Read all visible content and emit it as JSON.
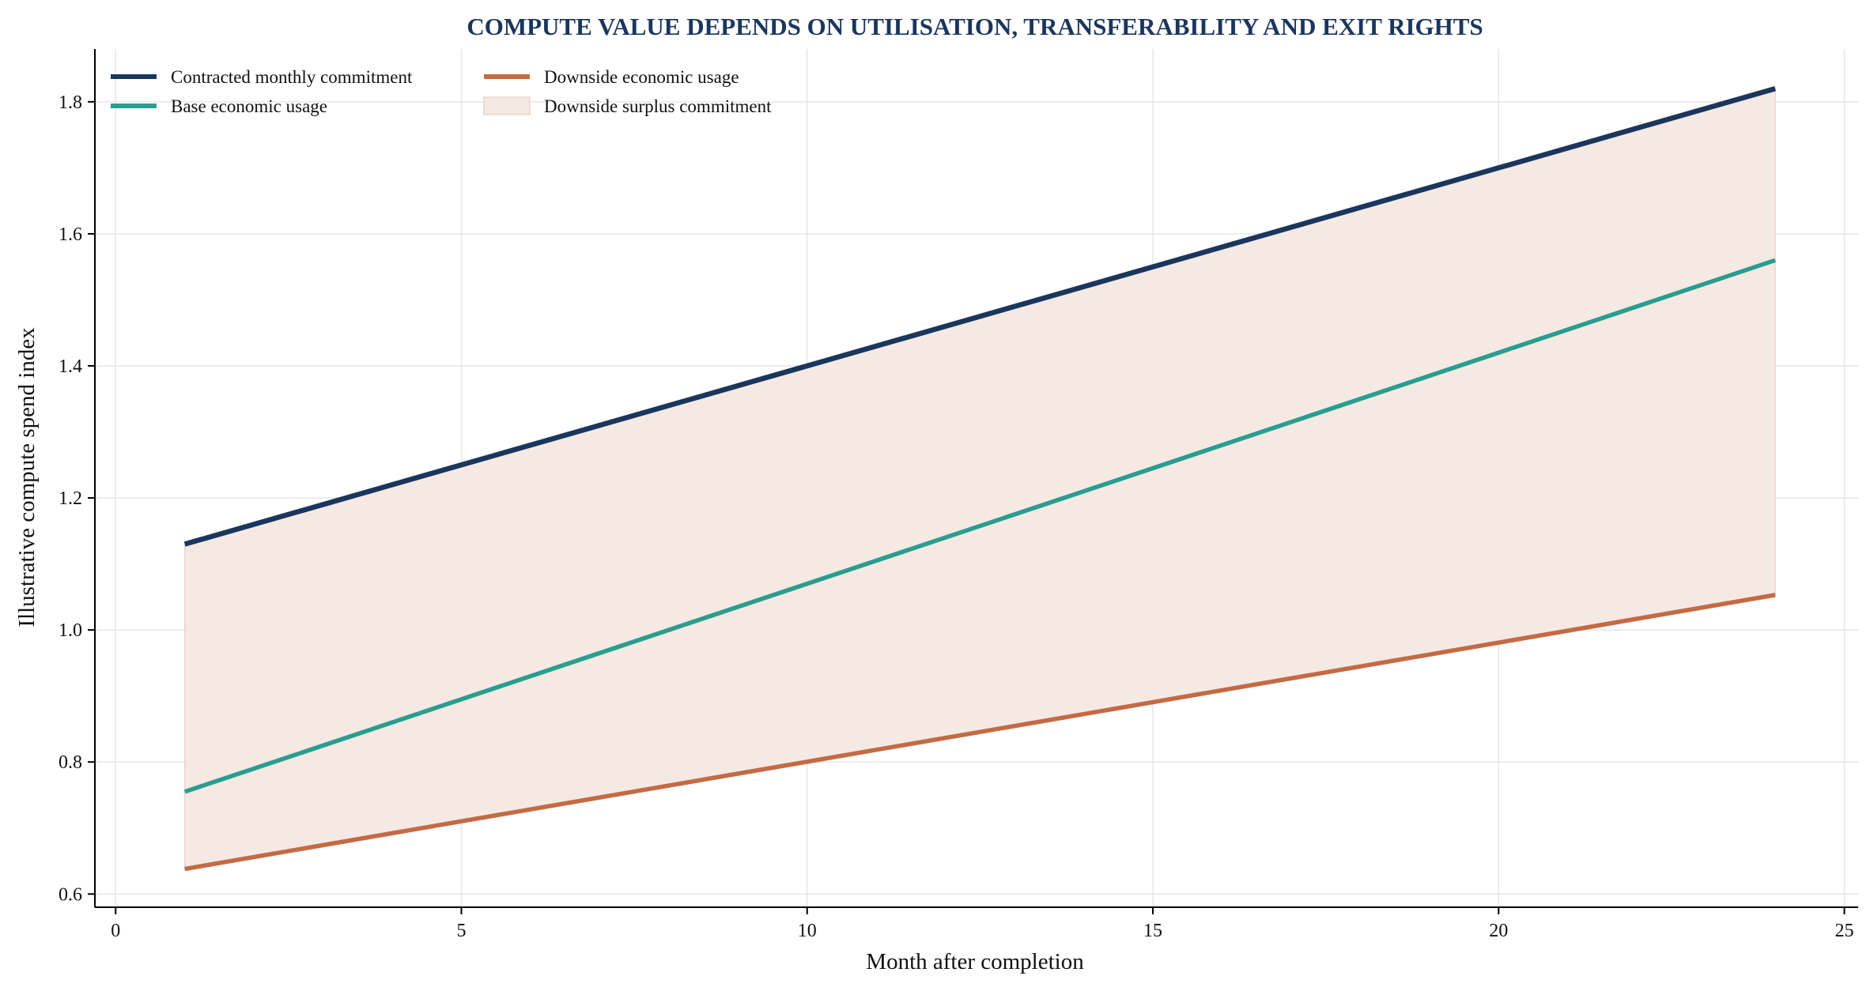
{
  "chart_data": {
    "type": "line",
    "title": "COMPUTE VALUE DEPENDS ON UTILISATION, TRANSFERABILITY AND EXIT RIGHTS",
    "xlabel": "Month after completion",
    "ylabel": "Illustrative compute spend index",
    "xlim": [
      -0.3,
      25.2
    ],
    "ylim": [
      0.58,
      1.88
    ],
    "xticks": [
      "0",
      "5",
      "10",
      "15",
      "20",
      "25"
    ],
    "yticks": [
      "0.6",
      "0.8",
      "1.0",
      "1.2",
      "1.4",
      "1.6",
      "1.8"
    ],
    "grid": true,
    "legend_position": "top-left",
    "x": [
      1,
      24
    ],
    "series": [
      {
        "name": "Contracted monthly commitment",
        "values": [
          1.13,
          1.82
        ],
        "color": "#1b365d"
      },
      {
        "name": "Base economic usage",
        "values": [
          0.755,
          1.56
        ],
        "color": "#2a9d8f"
      },
      {
        "name": "Downside economic usage",
        "values": [
          0.638,
          1.053
        ],
        "color": "#c46a44"
      }
    ],
    "area": {
      "name": "Downside surplus commitment",
      "between": [
        "Contracted monthly commitment",
        "Downside economic usage"
      ],
      "color": "#f5e9e4"
    },
    "title_color": "#1b365d"
  }
}
